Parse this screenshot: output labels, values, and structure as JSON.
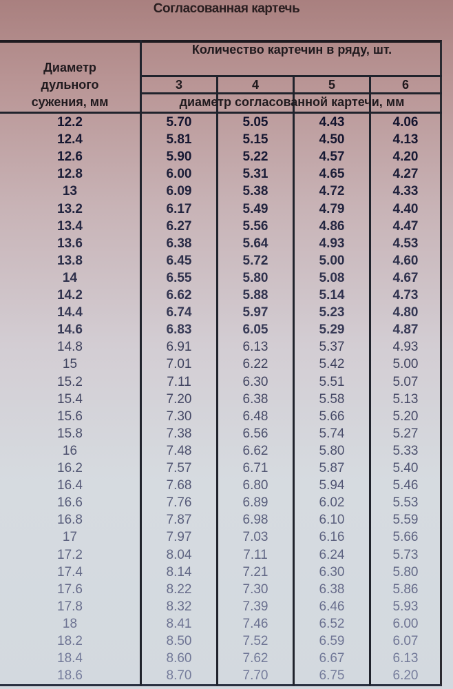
{
  "title": "Согласованная картечь",
  "header": {
    "row_label": [
      "Диаметр",
      "дульного",
      "сужения, мм"
    ],
    "group_label": "Количество картечин в ряду, шт.",
    "counts": [
      "3",
      "4",
      "5",
      "6"
    ],
    "sub_label": "диаметр согласованной картечи, мм"
  },
  "rows": [
    [
      "12.2",
      "5.70",
      "5.05",
      "4.43",
      "4.06"
    ],
    [
      "12.4",
      "5.81",
      "5.15",
      "4.50",
      "4.13"
    ],
    [
      "12.6",
      "5.90",
      "5.22",
      "4.57",
      "4.20"
    ],
    [
      "12.8",
      "6.00",
      "5.31",
      "4.65",
      "4.27"
    ],
    [
      "13",
      "6.09",
      "5.38",
      "4.72",
      "4.33"
    ],
    [
      "13.2",
      "6.17",
      "5.49",
      "4.79",
      "4.40"
    ],
    [
      "13.4",
      "6.27",
      "5.56",
      "4.86",
      "4.47"
    ],
    [
      "13.6",
      "6.38",
      "5.64",
      "4.93",
      "4.53"
    ],
    [
      "13.8",
      "6.45",
      "5.72",
      "5.00",
      "4.60"
    ],
    [
      "14",
      "6.55",
      "5.80",
      "5.08",
      "4.67"
    ],
    [
      "14.2",
      "6.62",
      "5.88",
      "5.14",
      "4.73"
    ],
    [
      "14.4",
      "6.74",
      "5.97",
      "5.23",
      "4.80"
    ],
    [
      "14.6",
      "6.83",
      "6.05",
      "5.29",
      "4.87"
    ],
    [
      "14.8",
      "6.91",
      "6.13",
      "5.37",
      "4.93"
    ],
    [
      "15",
      "7.01",
      "6.22",
      "5.42",
      "5.00"
    ],
    [
      "15.2",
      "7.11",
      "6.30",
      "5.51",
      "5.07"
    ],
    [
      "15.4",
      "7.20",
      "6.38",
      "5.58",
      "5.13"
    ],
    [
      "15.6",
      "7.30",
      "6.48",
      "5.66",
      "5.20"
    ],
    [
      "15.8",
      "7.38",
      "6.56",
      "5.74",
      "5.27"
    ],
    [
      "16",
      "7.48",
      "6.62",
      "5.80",
      "5.33"
    ],
    [
      "16.2",
      "7.57",
      "6.71",
      "5.87",
      "5.40"
    ],
    [
      "16.4",
      "7.68",
      "6.80",
      "5.94",
      "5.46"
    ],
    [
      "16.6",
      "7.76",
      "6.89",
      "6.02",
      "5.53"
    ],
    [
      "16.8",
      "7.87",
      "6.98",
      "6.10",
      "5.59"
    ],
    [
      "17",
      "7.97",
      "7.03",
      "6.16",
      "5.66"
    ],
    [
      "17.2",
      "8.04",
      "7.11",
      "6.24",
      "5.73"
    ],
    [
      "17.4",
      "8.14",
      "7.21",
      "6.30",
      "5.80"
    ],
    [
      "17.6",
      "8.22",
      "7.30",
      "6.38",
      "5.86"
    ],
    [
      "17.8",
      "8.32",
      "7.39",
      "6.46",
      "5.93"
    ],
    [
      "18",
      "8.41",
      "7.46",
      "6.52",
      "6.00"
    ],
    [
      "18.2",
      "8.50",
      "7.52",
      "6.59",
      "6.07"
    ],
    [
      "18.4",
      "8.60",
      "7.62",
      "6.67",
      "6.13"
    ],
    [
      "18.6",
      "8.70",
      "7.70",
      "6.75",
      "6.20"
    ]
  ]
}
